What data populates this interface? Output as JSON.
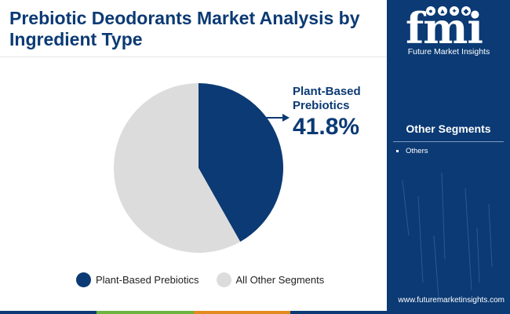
{
  "title": "Prebiotic Deodorants Market Analysis by Ingredient Type",
  "chart_data": {
    "type": "pie",
    "categories": [
      "Plant-Based Prebiotics",
      "All Other Segments"
    ],
    "values": [
      41.8,
      58.2
    ],
    "colors": [
      "#0b3a74",
      "#dcdcdc"
    ],
    "start_angle": "12 o'clock, clockwise",
    "annotation": {
      "label": "Plant-Based Prebiotics",
      "value": "41.8%"
    },
    "legend": "bottom"
  },
  "sidebar": {
    "logo_letters": "fmi",
    "logo_subtitle": "Future Market Insights",
    "segments_title": "Other Segments",
    "segments": [
      "Others"
    ],
    "website": "www.futuremarketinsights.com"
  },
  "theme": {
    "primary": "#0b3a74",
    "slice_other": "#dcdcdc",
    "bottom_bar": [
      "#0b3a74",
      "#6cb33f",
      "#e58a1f",
      "#0b3a74"
    ]
  }
}
